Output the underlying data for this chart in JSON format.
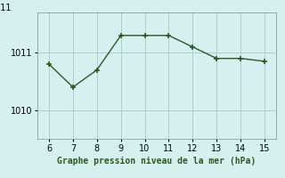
{
  "x": [
    6,
    7,
    8,
    9,
    10,
    11,
    12,
    13,
    14,
    15
  ],
  "y": [
    1010.8,
    1010.4,
    1010.7,
    1011.3,
    1011.3,
    1011.3,
    1011.1,
    1010.9,
    1010.9,
    1010.85
  ],
  "line_color": "#2d5a1b",
  "marker_color": "#2d5a1b",
  "bg_color": "#d6f0f0",
  "grid_color": "#aacfcf",
  "xlabel": "Graphe pression niveau de la mer (hPa)",
  "xlabel_color": "#2d5a1b",
  "ylim": [
    1009.5,
    1011.7
  ],
  "xlim": [
    5.5,
    15.5
  ],
  "xticks": [
    6,
    7,
    8,
    9,
    10,
    11,
    12,
    13,
    14,
    15
  ],
  "yticks": [
    1010,
    1011
  ],
  "yticklabels": [
    "1010",
    "1011"
  ]
}
